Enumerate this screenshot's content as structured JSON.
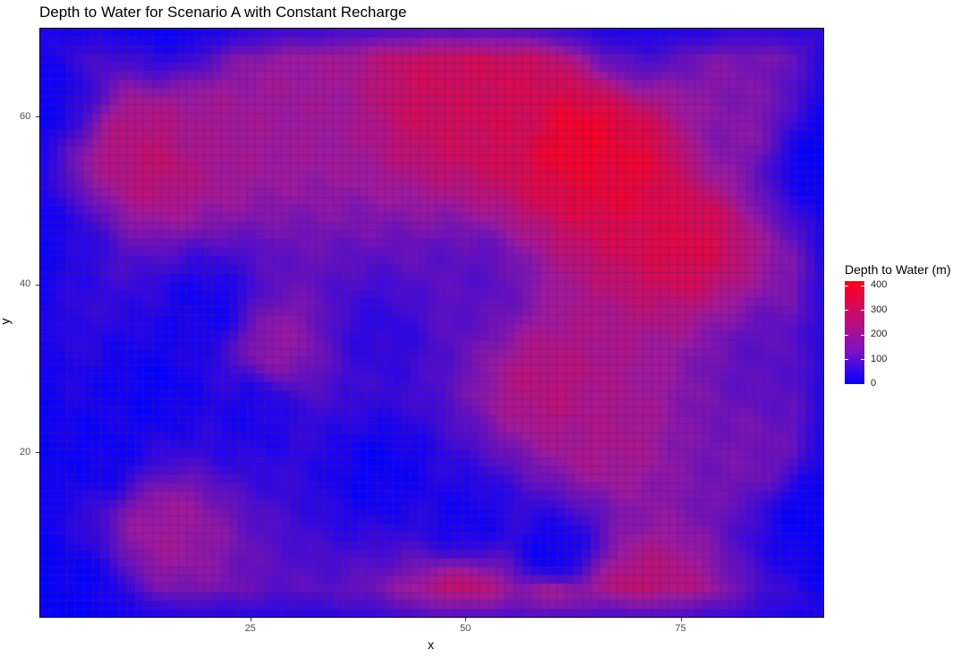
{
  "chart_data": {
    "type": "heatmap",
    "title": "Depth to Water for Scenario A with Constant Recharge",
    "xlabel": "x",
    "ylabel": "y",
    "xlim": [
      0.5,
      91.5
    ],
    "ylim": [
      0.5,
      70.5
    ],
    "x_ticks": [
      25,
      50,
      75
    ],
    "y_ticks": [
      20,
      40,
      60
    ],
    "grid": false,
    "grid_size": {
      "nx": 91,
      "ny": 70
    },
    "value_range": [
      0,
      420
    ],
    "colors": {
      "low": "#0000ff",
      "mid": "#9b1aa0",
      "high": "#ff0018",
      "cell_border": "#5a1f6e"
    },
    "legend": {
      "title": "Depth to Water (m)",
      "position": "right",
      "ticks": [
        0,
        100,
        200,
        300,
        400
      ]
    },
    "features": [
      {
        "x": 14,
        "y": 55,
        "value": 290
      },
      {
        "x": 12,
        "y": 57,
        "value": 270
      },
      {
        "x": 20,
        "y": 58,
        "value": 230
      },
      {
        "x": 30,
        "y": 60,
        "value": 220
      },
      {
        "x": 48,
        "y": 62,
        "value": 320
      },
      {
        "x": 55,
        "y": 60,
        "value": 330
      },
      {
        "x": 63,
        "y": 57,
        "value": 400
      },
      {
        "x": 68,
        "y": 54,
        "value": 380
      },
      {
        "x": 75,
        "y": 46,
        "value": 350
      },
      {
        "x": 60,
        "y": 28,
        "value": 270
      },
      {
        "x": 66,
        "y": 22,
        "value": 240
      },
      {
        "x": 28,
        "y": 33,
        "value": 200
      },
      {
        "x": 50,
        "y": 2,
        "value": 300
      },
      {
        "x": 60,
        "y": 1,
        "value": 290
      },
      {
        "x": 70,
        "y": 3,
        "value": 280
      },
      {
        "x": 15,
        "y": 11,
        "value": 220
      },
      {
        "x": 82,
        "y": 58,
        "value": 180
      },
      {
        "x": 20,
        "y": 37,
        "value": 20
      },
      {
        "x": 14,
        "y": 28,
        "value": 10
      },
      {
        "x": 7,
        "y": 20,
        "value": 15
      },
      {
        "x": 25,
        "y": 25,
        "value": 30
      },
      {
        "x": 40,
        "y": 18,
        "value": 10
      },
      {
        "x": 50,
        "y": 12,
        "value": 20
      },
      {
        "x": 60,
        "y": 8,
        "value": 5
      },
      {
        "x": 2,
        "y": 45,
        "value": 40
      },
      {
        "x": 2,
        "y": 62,
        "value": 30
      },
      {
        "x": 90,
        "y": 55,
        "value": 10
      },
      {
        "x": 90,
        "y": 12,
        "value": 10
      },
      {
        "x": 4,
        "y": 4,
        "value": 10
      },
      {
        "x": 40,
        "y": 34,
        "value": 60
      },
      {
        "x": 50,
        "y": 40,
        "value": 120
      },
      {
        "x": 86,
        "y": 30,
        "value": 120
      },
      {
        "x": 82,
        "y": 20,
        "value": 160
      },
      {
        "x": 15,
        "y": 70,
        "value": 40
      },
      {
        "x": 70,
        "y": 70,
        "value": 90
      }
    ]
  }
}
